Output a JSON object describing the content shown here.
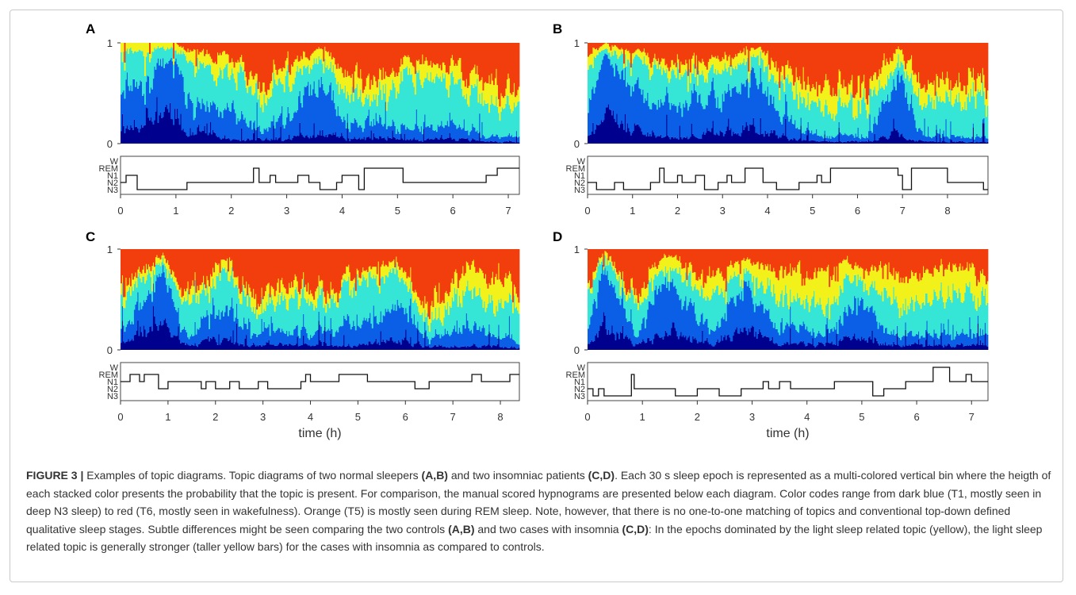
{
  "figure": {
    "caption": {
      "label": "FIGURE 3 |",
      "segments": [
        " Examples of topic diagrams. Topic diagrams of two normal sleepers ",
        "(A,B)",
        " and two insomniac patients ",
        "(C,D)",
        ". Each 30 s sleep epoch is represented as a multi-colored vertical bin where the heigth of each stacked color presents the probability that the topic is present. For comparison, the manual scored hypnograms are presented below each diagram. Color codes range from dark blue (T1, mostly seen in deep N3 sleep) to red (T6, mostly seen in wakefulness). Orange (T5) is mostly seen during REM sleep. Note, however, that there is no one-to-one matching of topics and conventional top-down defined qualitative sleep stages. Subtle differences might be seen comparing the two controls ",
        "(A,B)",
        " and two cases with insomnia ",
        "(C,D)",
        ": In the epochs dominated by the light sleep related topic (yellow), the light sleep related topic is generally stronger (taller yellow bars) for the cases with insomnia as compared to controls."
      ]
    },
    "colors": {
      "T1": "#00008f",
      "T2": "#0a5fe6",
      "T3": "#35e6d6",
      "T4": "#f2f21a",
      "T5": "#f23d0c",
      "T6": "#8a0b00"
    },
    "topics": [
      "T1",
      "T2",
      "T3",
      "T4",
      "T5",
      "T6"
    ],
    "stage_labels": [
      "W",
      "REM",
      "N1",
      "N2",
      "N3"
    ],
    "topic_axis_ticks": [
      "0",
      "1"
    ],
    "xlabel": "time (h)"
  },
  "chart_data": [
    {
      "panel": "A",
      "type": "area",
      "duration_h": 7.2,
      "xticks": [
        0,
        1,
        2,
        3,
        4,
        5,
        6,
        7
      ],
      "topic_mix": [
        [
          0,
          0.1,
          0.45,
          0.35,
          0.1,
          0.0
        ],
        [
          1,
          0.35,
          0.5,
          0.1,
          0.05,
          0.0
        ],
        [
          1.2,
          0.15,
          0.3,
          0.35,
          0.12,
          0.08
        ],
        [
          2,
          0.05,
          0.25,
          0.4,
          0.15,
          0.15
        ],
        [
          2.5,
          0.03,
          0.1,
          0.35,
          0.12,
          0.4
        ],
        [
          3,
          0.05,
          0.2,
          0.35,
          0.15,
          0.25
        ],
        [
          3.6,
          0.1,
          0.55,
          0.2,
          0.1,
          0.05
        ],
        [
          4.1,
          0.05,
          0.15,
          0.3,
          0.2,
          0.3
        ],
        [
          4.5,
          0.05,
          0.15,
          0.2,
          0.15,
          0.45
        ],
        [
          5.2,
          0.05,
          0.1,
          0.5,
          0.15,
          0.2
        ],
        [
          6,
          0.05,
          0.15,
          0.45,
          0.15,
          0.2
        ],
        [
          6.6,
          0.02,
          0.05,
          0.35,
          0.18,
          0.4
        ],
        [
          7.2,
          0.02,
          0.05,
          0.25,
          0.15,
          0.53
        ]
      ],
      "hypnogram": [
        [
          0,
          3
        ],
        [
          0.1,
          2
        ],
        [
          0.3,
          4
        ],
        [
          1.2,
          3
        ],
        [
          2.4,
          1
        ],
        [
          2.5,
          3
        ],
        [
          2.7,
          2
        ],
        [
          2.8,
          3
        ],
        [
          3.2,
          2
        ],
        [
          3.4,
          3
        ],
        [
          3.6,
          4
        ],
        [
          3.9,
          3
        ],
        [
          4.0,
          2
        ],
        [
          4.3,
          4
        ],
        [
          4.4,
          1
        ],
        [
          4.55,
          1
        ],
        [
          5.1,
          3
        ],
        [
          6.6,
          2
        ],
        [
          6.8,
          1
        ],
        [
          7.2,
          1
        ]
      ]
    },
    {
      "panel": "B",
      "type": "area",
      "duration_h": 8.9,
      "xticks": [
        0,
        1,
        2,
        3,
        4,
        5,
        6,
        7,
        8
      ],
      "topic_mix": [
        [
          0,
          0.05,
          0.35,
          0.35,
          0.1,
          0.15
        ],
        [
          0.4,
          0.3,
          0.6,
          0.05,
          0.05,
          0.0
        ],
        [
          1.3,
          0.1,
          0.3,
          0.35,
          0.1,
          0.15
        ],
        [
          2,
          0.05,
          0.3,
          0.35,
          0.1,
          0.2
        ],
        [
          3,
          0.1,
          0.4,
          0.25,
          0.1,
          0.15
        ],
        [
          3.8,
          0.15,
          0.5,
          0.2,
          0.1,
          0.05
        ],
        [
          4.5,
          0.05,
          0.15,
          0.35,
          0.15,
          0.3
        ],
        [
          5.3,
          0.02,
          0.05,
          0.25,
          0.18,
          0.5
        ],
        [
          6.2,
          0.02,
          0.05,
          0.3,
          0.18,
          0.45
        ],
        [
          6.9,
          0.1,
          0.55,
          0.2,
          0.1,
          0.05
        ],
        [
          7.5,
          0.02,
          0.05,
          0.3,
          0.2,
          0.43
        ],
        [
          8.9,
          0.02,
          0.05,
          0.4,
          0.15,
          0.38
        ]
      ],
      "hypnogram": [
        [
          0,
          3
        ],
        [
          0.2,
          4
        ],
        [
          0.6,
          3
        ],
        [
          0.8,
          4
        ],
        [
          1.4,
          3
        ],
        [
          1.6,
          1
        ],
        [
          1.7,
          3
        ],
        [
          2.0,
          2
        ],
        [
          2.1,
          3
        ],
        [
          2.4,
          2
        ],
        [
          2.6,
          4
        ],
        [
          2.9,
          3
        ],
        [
          3.1,
          2
        ],
        [
          3.2,
          3
        ],
        [
          3.5,
          1
        ],
        [
          3.9,
          3
        ],
        [
          4.2,
          4
        ],
        [
          4.7,
          3
        ],
        [
          5.1,
          2
        ],
        [
          5.2,
          3
        ],
        [
          5.4,
          1
        ],
        [
          6.9,
          2
        ],
        [
          7.0,
          4
        ],
        [
          7.2,
          1
        ],
        [
          8.0,
          3
        ],
        [
          8.6,
          3
        ],
        [
          8.8,
          4
        ],
        [
          8.9,
          4
        ]
      ]
    },
    {
      "panel": "C",
      "type": "area",
      "duration_h": 8.4,
      "xticks": [
        0,
        1,
        2,
        3,
        4,
        5,
        6,
        7,
        8
      ],
      "topic_mix": [
        [
          0,
          0.05,
          0.1,
          0.3,
          0.1,
          0.45
        ],
        [
          0.9,
          0.3,
          0.5,
          0.1,
          0.05,
          0.05
        ],
        [
          1.4,
          0.05,
          0.1,
          0.3,
          0.1,
          0.45
        ],
        [
          2.2,
          0.1,
          0.35,
          0.35,
          0.1,
          0.1
        ],
        [
          2.8,
          0.05,
          0.1,
          0.2,
          0.1,
          0.55
        ],
        [
          3.8,
          0.05,
          0.15,
          0.35,
          0.15,
          0.3
        ],
        [
          4.2,
          0.05,
          0.1,
          0.25,
          0.1,
          0.5
        ],
        [
          5,
          0.05,
          0.25,
          0.4,
          0.1,
          0.2
        ],
        [
          5.8,
          0.1,
          0.4,
          0.3,
          0.1,
          0.1
        ],
        [
          6.5,
          0.03,
          0.07,
          0.15,
          0.15,
          0.6
        ],
        [
          7.3,
          0.05,
          0.2,
          0.35,
          0.25,
          0.15
        ],
        [
          8.4,
          0.02,
          0.05,
          0.3,
          0.2,
          0.43
        ]
      ],
      "hypnogram": [
        [
          0,
          2
        ],
        [
          0.2,
          1
        ],
        [
          0.4,
          2
        ],
        [
          0.5,
          1
        ],
        [
          0.8,
          3
        ],
        [
          1.0,
          2
        ],
        [
          1.4,
          2
        ],
        [
          1.7,
          3
        ],
        [
          1.8,
          2
        ],
        [
          2.0,
          3
        ],
        [
          2.3,
          2
        ],
        [
          2.5,
          3
        ],
        [
          2.9,
          2
        ],
        [
          3.1,
          3
        ],
        [
          3.8,
          2
        ],
        [
          3.9,
          1
        ],
        [
          4.0,
          2
        ],
        [
          4.5,
          2
        ],
        [
          4.6,
          1
        ],
        [
          5.0,
          1
        ],
        [
          5.2,
          2
        ],
        [
          6.2,
          3
        ],
        [
          6.5,
          2
        ],
        [
          7.4,
          1
        ],
        [
          7.6,
          2
        ],
        [
          8.0,
          2
        ],
        [
          8.2,
          1
        ],
        [
          8.4,
          1
        ]
      ]
    },
    {
      "panel": "D",
      "type": "area",
      "duration_h": 7.3,
      "xticks": [
        0,
        1,
        2,
        3,
        4,
        5,
        6,
        7
      ],
      "topic_mix": [
        [
          0,
          0.05,
          0.15,
          0.35,
          0.1,
          0.35
        ],
        [
          0.3,
          0.25,
          0.6,
          0.1,
          0.05,
          0.0
        ],
        [
          0.9,
          0.05,
          0.1,
          0.3,
          0.1,
          0.45
        ],
        [
          1.4,
          0.2,
          0.5,
          0.15,
          0.1,
          0.05
        ],
        [
          2.3,
          0.05,
          0.15,
          0.35,
          0.15,
          0.3
        ],
        [
          2.9,
          0.2,
          0.45,
          0.15,
          0.1,
          0.1
        ],
        [
          3.5,
          0.05,
          0.15,
          0.3,
          0.25,
          0.25
        ],
        [
          4.3,
          0.05,
          0.1,
          0.3,
          0.35,
          0.2
        ],
        [
          5,
          0.15,
          0.35,
          0.2,
          0.15,
          0.15
        ],
        [
          5.5,
          0.05,
          0.1,
          0.3,
          0.3,
          0.25
        ],
        [
          6.5,
          0.05,
          0.1,
          0.35,
          0.3,
          0.2
        ],
        [
          7.3,
          0.05,
          0.1,
          0.4,
          0.2,
          0.25
        ]
      ],
      "hypnogram": [
        [
          0,
          3
        ],
        [
          0.1,
          4
        ],
        [
          0.2,
          3
        ],
        [
          0.3,
          4
        ],
        [
          0.8,
          1
        ],
        [
          0.85,
          3
        ],
        [
          1.6,
          4
        ],
        [
          2.0,
          3
        ],
        [
          2.4,
          4
        ],
        [
          2.8,
          3
        ],
        [
          3.2,
          2
        ],
        [
          3.3,
          3
        ],
        [
          3.5,
          2
        ],
        [
          3.7,
          3
        ],
        [
          4.2,
          3
        ],
        [
          4.5,
          2
        ],
        [
          4.8,
          2
        ],
        [
          5.2,
          4
        ],
        [
          5.4,
          3
        ],
        [
          5.8,
          2
        ],
        [
          6.3,
          0
        ],
        [
          6.6,
          2
        ],
        [
          6.9,
          1
        ],
        [
          7.0,
          2
        ],
        [
          7.3,
          2
        ]
      ]
    }
  ]
}
